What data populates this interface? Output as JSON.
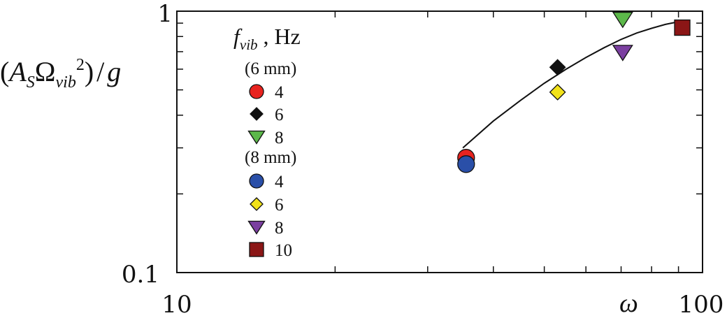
{
  "chart_data": {
    "type": "scatter",
    "x_scale": "log",
    "y_scale": "log",
    "xlim": [
      10,
      100
    ],
    "ylim": [
      0.1,
      1
    ],
    "x_tick_labels": [
      "10",
      "100"
    ],
    "y_tick_labels": [
      "0.1",
      "1"
    ],
    "xlabel": "ω",
    "ylabel": {
      "open": "(",
      "A": "A",
      "A_sub": "S",
      "Omega": "Ω",
      "Omega_sub": "vib",
      "exp": "2",
      "close": ")",
      "div": "/",
      "g": "g"
    },
    "legend": {
      "title_f": "f",
      "title_sub": "vib",
      "title_rest": " , Hz",
      "group_labels": [
        "(6 mm)",
        "(8 mm)"
      ]
    },
    "series": [
      {
        "name": "4",
        "group": "(6 mm)",
        "marker": "circle",
        "color": "#e8231f",
        "points": [
          [
            35.5,
            0.275
          ]
        ]
      },
      {
        "name": "6",
        "group": "(6 mm)",
        "marker": "diamond",
        "color": "#111111",
        "points": [
          [
            53.0,
            0.61
          ]
        ]
      },
      {
        "name": "8",
        "group": "(6 mm)",
        "marker": "triangle-down",
        "color": "#5cb84a",
        "points": [
          [
            70.5,
            0.93
          ]
        ]
      },
      {
        "name": "4",
        "group": "(8 mm)",
        "marker": "circle",
        "color": "#2a4fa8",
        "points": [
          [
            35.5,
            0.26
          ]
        ]
      },
      {
        "name": "6",
        "group": "(8 mm)",
        "marker": "diamond",
        "color": "#f2e21a",
        "points": [
          [
            53.0,
            0.49
          ]
        ]
      },
      {
        "name": "8",
        "group": "(8 mm)",
        "marker": "triangle-down",
        "color": "#7b3fa0",
        "points": [
          [
            70.5,
            0.695
          ]
        ]
      },
      {
        "name": "10",
        "group": "(8 mm)",
        "marker": "square",
        "color": "#8b1616",
        "points": [
          [
            91.5,
            0.865
          ]
        ]
      }
    ],
    "fit_curve": {
      "color": "#111111",
      "points": [
        [
          35.0,
          0.3
        ],
        [
          40.0,
          0.38
        ],
        [
          45.0,
          0.455
        ],
        [
          50.0,
          0.53
        ],
        [
          55.0,
          0.6
        ],
        [
          60.0,
          0.665
        ],
        [
          65.0,
          0.725
        ],
        [
          70.0,
          0.78
        ],
        [
          75.0,
          0.825
        ],
        [
          80.0,
          0.86
        ],
        [
          85.0,
          0.89
        ],
        [
          91.0,
          0.915
        ]
      ]
    }
  }
}
